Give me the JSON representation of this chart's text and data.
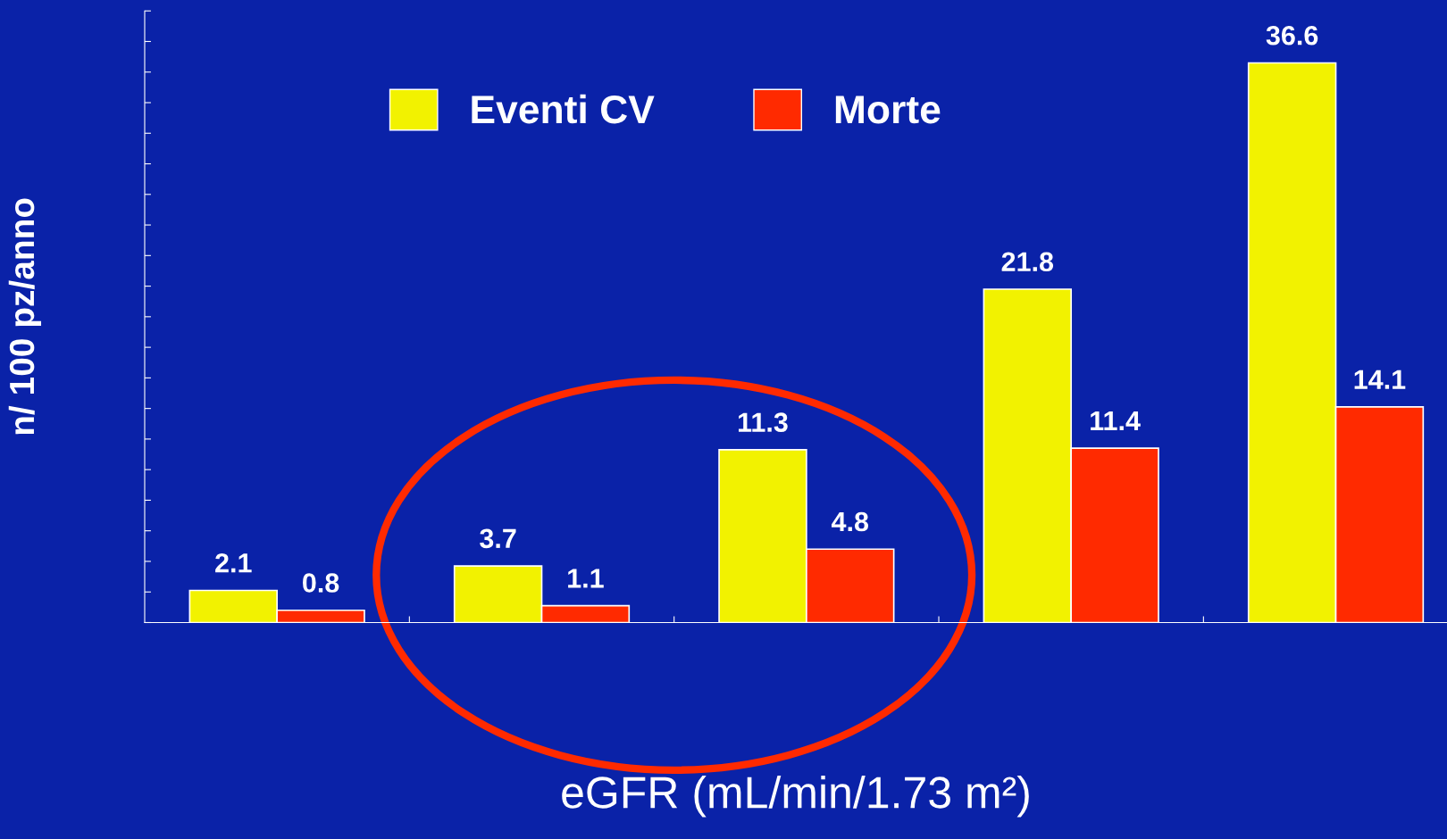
{
  "chart_data": {
    "type": "bar",
    "xlabel": "eGFR (mL/min/1.73 m²)",
    "ylabel": "n/ 100 pz/anno",
    "categories": [
      null,
      null,
      null,
      null,
      null
    ],
    "series": [
      {
        "name": "Eventi CV",
        "color": "#f2f200",
        "values": [
          2.1,
          3.7,
          11.3,
          21.8,
          36.6
        ]
      },
      {
        "name": "Morte",
        "color": "#ff2a00",
        "values": [
          0.8,
          1.1,
          4.8,
          11.4,
          14.1
        ]
      }
    ],
    "ylim": [
      0,
      40
    ],
    "yticks": [
      {
        "value": 0,
        "label": null
      },
      {
        "value": 2,
        "label": null
      },
      {
        "value": 4,
        "label": null
      },
      {
        "value": 6,
        "label": null
      },
      {
        "value": 8,
        "label": null
      },
      {
        "value": 10,
        "label": null
      },
      {
        "value": 12,
        "label": null
      },
      {
        "value": 14,
        "label": null
      },
      {
        "value": 16,
        "label": null
      },
      {
        "value": 18,
        "label": null
      },
      {
        "value": 20,
        "label": null
      },
      {
        "value": 22,
        "label": null
      },
      {
        "value": 24,
        "label": null
      },
      {
        "value": 26,
        "label": null
      },
      {
        "value": 28,
        "label": null
      },
      {
        "value": 30,
        "label": null
      },
      {
        "value": 32,
        "label": null
      },
      {
        "value": 34,
        "label": null
      },
      {
        "value": 36,
        "label": null
      },
      {
        "value": 38,
        "label": null
      },
      {
        "value": 40,
        "label": null
      }
    ],
    "data_labels": true,
    "legend": "top",
    "grid": false
  }
}
